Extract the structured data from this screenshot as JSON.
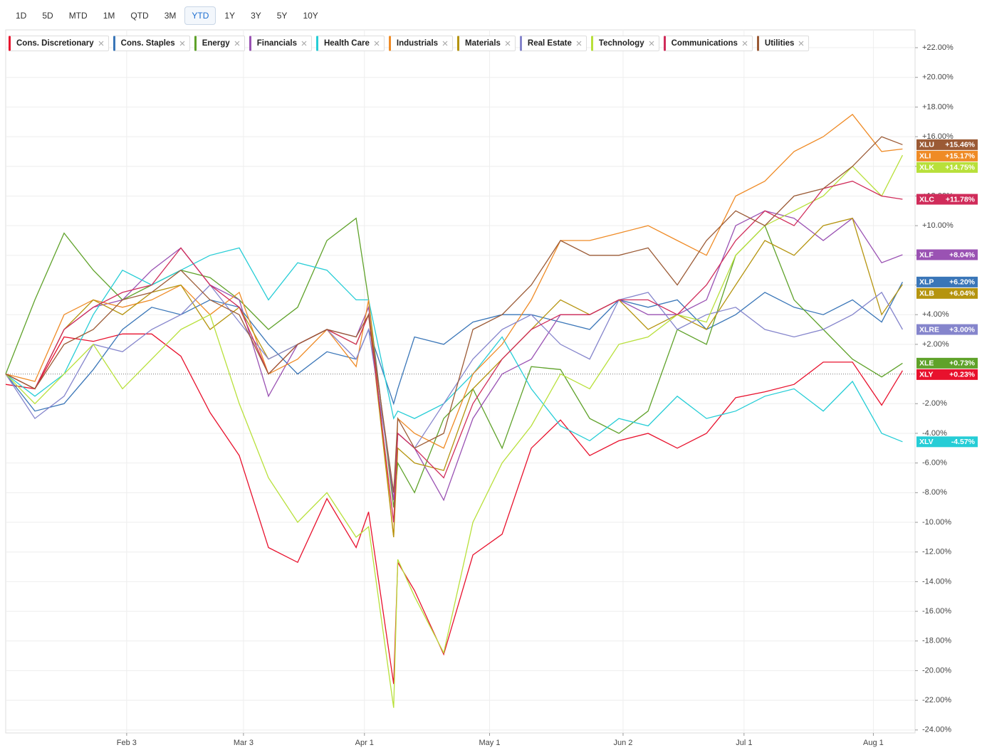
{
  "range_buttons": [
    "1D",
    "5D",
    "MTD",
    "1M",
    "QTD",
    "3M",
    "YTD",
    "1Y",
    "3Y",
    "5Y",
    "10Y"
  ],
  "active_range": "YTD",
  "chart_data": {
    "type": "line",
    "x": [
      "Jan 5",
      "Jan 12",
      "Jan 19",
      "Jan 26",
      "Feb 2",
      "Feb 9",
      "Feb 16",
      "Feb 23",
      "Mar 2",
      "Mar 9",
      "Mar 16",
      "Mar 23",
      "Mar 30",
      "Apr 2",
      "Apr 8",
      "Apr 9",
      "Apr 13",
      "Apr 20",
      "Apr 27",
      "May 4",
      "May 11",
      "May 18",
      "May 25",
      "Jun 1",
      "Jun 8",
      "Jun 15",
      "Jun 22",
      "Jun 29",
      "Jul 6",
      "Jul 13",
      "Jul 20",
      "Jul 27",
      "Aug 3",
      "Aug 8"
    ],
    "xlim": [
      "Jan 5",
      "Aug 11"
    ],
    "xticks": [
      "Feb 3",
      "Mar 3",
      "Apr 1",
      "May 1",
      "Jun 2",
      "Jul 1",
      "Aug 1"
    ],
    "ylim": [
      -24.2,
      23.2
    ],
    "yticks": [
      {
        "value": -24,
        "label": "-24.00%"
      },
      {
        "value": -22,
        "label": "-22.00%"
      },
      {
        "value": -20,
        "label": "-20.00%"
      },
      {
        "value": -18,
        "label": "-18.00%"
      },
      {
        "value": -16,
        "label": "-16.00%"
      },
      {
        "value": -14,
        "label": "-14.00%"
      },
      {
        "value": -12,
        "label": "-12.00%"
      },
      {
        "value": -10,
        "label": "-10.00%"
      },
      {
        "value": -8,
        "label": "-8.00%"
      },
      {
        "value": -6,
        "label": "-6.00%"
      },
      {
        "value": -4,
        "label": "-4.00%"
      },
      {
        "value": -2,
        "label": "-2.00%"
      },
      {
        "value": 2,
        "label": "+2.00%"
      },
      {
        "value": 4,
        "label": "+4.00%"
      },
      {
        "value": 6,
        "label": "+6.00%"
      },
      {
        "value": 8,
        "label": "+8.00%"
      },
      {
        "value": 10,
        "label": "+10.00%"
      },
      {
        "value": 12,
        "label": "+12.00%"
      },
      {
        "value": 14,
        "label": "+14.00%"
      },
      {
        "value": 16,
        "label": "+16.00%"
      },
      {
        "value": 18,
        "label": "+18.00%"
      },
      {
        "value": 20,
        "label": "+20.00%"
      },
      {
        "value": 22,
        "label": "+22.00%"
      }
    ],
    "grid": true,
    "series": [
      {
        "name": "Cons. Discretionary",
        "ticker": "XLY",
        "end_label": "+0.23%",
        "color": "#e8112d",
        "values": [
          -0.7,
          -1,
          2.5,
          2.2,
          2.7,
          2.7,
          1.2,
          -2.6,
          -5.5,
          -11.7,
          -12.7,
          -8.4,
          -11.7,
          -9.3,
          -20.9,
          -12.7,
          -14.6,
          -18.9,
          -12.2,
          -10.8,
          -5,
          -3.1,
          -5.5,
          -4.5,
          -4,
          -5,
          -4,
          -1.6,
          -1.2,
          -0.7,
          0.8,
          0.8,
          -2.1,
          0.23
        ]
      },
      {
        "name": "Cons. Staples",
        "ticker": "XLP",
        "end_label": "+6.20%",
        "color": "#3a76b8",
        "values": [
          0,
          -2.5,
          -2,
          0.3,
          3,
          4.5,
          4,
          5,
          4.5,
          2,
          0,
          1.5,
          1,
          3,
          -2,
          -1,
          2.5,
          2,
          3.5,
          4,
          4,
          3.5,
          3,
          5,
          4.5,
          5,
          3,
          4,
          5.5,
          4.5,
          4,
          5,
          3.5,
          6.2
        ]
      },
      {
        "name": "Energy",
        "ticker": "XLE",
        "end_label": "+0.73%",
        "color": "#5fa22a",
        "values": [
          0,
          5,
          9.5,
          7,
          5,
          6,
          7,
          6.5,
          5,
          3,
          4.5,
          9,
          10.5,
          5,
          -9,
          -6,
          -8,
          -3,
          -1,
          -5,
          0.5,
          0.3,
          -3,
          -4,
          -2.5,
          3,
          2,
          8,
          10,
          5,
          3,
          1,
          -0.2,
          0.73
        ]
      },
      {
        "name": "Financials",
        "ticker": "XLF",
        "end_label": "+8.04%",
        "color": "#9a52b3",
        "values": [
          0,
          -1,
          3,
          4.5,
          5,
          7,
          8.5,
          6,
          5,
          -1.5,
          2,
          3,
          2.5,
          4.5,
          -8.5,
          -4,
          -5,
          -8.5,
          -3,
          0,
          1,
          4,
          4,
          5,
          4,
          4,
          5,
          10,
          11,
          10.5,
          9,
          10.5,
          7.5,
          8.04
        ]
      },
      {
        "name": "Health Care",
        "ticker": "XLV",
        "end_label": "-4.57%",
        "color": "#26cdd6",
        "values": [
          0,
          -1.5,
          0,
          4,
          7,
          6,
          7,
          8,
          8.5,
          5,
          7.5,
          7,
          5,
          5,
          -3,
          -2.5,
          -3,
          -2,
          0,
          2.5,
          -1,
          -3.5,
          -4.5,
          -3,
          -3.5,
          -1.5,
          -3,
          -2.5,
          -1.5,
          -1,
          -2.5,
          -0.5,
          -4,
          -4.57
        ]
      },
      {
        "name": "Industrials",
        "ticker": "XLI",
        "end_label": "+15.17%",
        "color": "#ef8b26",
        "values": [
          0,
          -0.5,
          4,
          5,
          4.5,
          5,
          6,
          4,
          5.5,
          0,
          1,
          3,
          0.5,
          5,
          -11,
          -3,
          -4,
          -5,
          0,
          2,
          5,
          9,
          9,
          9.5,
          10,
          9,
          8,
          12,
          13,
          15,
          16,
          17.5,
          15,
          15.17
        ]
      },
      {
        "name": "Materials",
        "ticker": "XLB",
        "end_label": "+6.04%",
        "color": "#b5940f",
        "values": [
          0,
          -1,
          3,
          5,
          4,
          5.5,
          6,
          3,
          4.5,
          1,
          2,
          3,
          2,
          4,
          -11,
          -5,
          -6,
          -6.5,
          -1,
          1,
          3,
          5,
          4,
          5,
          3,
          4,
          3,
          6,
          9,
          8,
          10,
          10.5,
          4,
          6.04
        ]
      },
      {
        "name": "Real Estate",
        "ticker": "XLRE",
        "end_label": "+3.00%",
        "color": "#8585cc",
        "values": [
          0,
          -3,
          -1.5,
          2,
          1.5,
          3,
          4,
          6,
          3.5,
          1,
          2,
          3,
          1,
          3,
          -8,
          -4,
          -5,
          -2,
          1,
          3,
          4,
          2,
          1,
          5,
          5.5,
          3,
          4,
          4.5,
          3,
          2.5,
          3,
          4,
          5.5,
          3
        ]
      },
      {
        "name": "Technology",
        "ticker": "XLK",
        "end_label": "+14.75%",
        "color": "#b8e03a",
        "values": [
          0,
          -2,
          0,
          2,
          -1,
          1,
          3,
          4,
          -2,
          -7,
          -10,
          -8,
          -11,
          -10.3,
          -22.5,
          -12.5,
          -15,
          -18.8,
          -10,
          -6,
          -3.5,
          0,
          -1,
          2,
          2.5,
          4,
          3.5,
          8,
          10,
          11,
          12,
          14,
          12,
          14.75
        ]
      },
      {
        "name": "Communications",
        "ticker": "XLC",
        "end_label": "+11.78%",
        "color": "#d02c5a",
        "values": [
          0,
          -1,
          3,
          4.5,
          5.5,
          6,
          8.5,
          6,
          4.5,
          0,
          2,
          3,
          2,
          4,
          -10,
          -4,
          -5,
          -7,
          -2,
          1,
          3,
          4,
          4,
          5,
          5,
          4,
          6,
          9,
          11,
          10,
          12.5,
          13,
          12,
          11.78
        ]
      },
      {
        "name": "Utilities",
        "ticker": "XLU",
        "end_label": "+15.46%",
        "color": "#9b5a35",
        "values": [
          0,
          -1,
          2,
          3,
          5,
          5.5,
          7,
          5,
          4,
          0,
          2,
          3,
          2.5,
          4,
          -8,
          -3,
          -5,
          -4,
          3,
          4,
          6,
          9,
          8,
          8,
          8.5,
          6,
          9,
          11,
          10,
          12,
          12.5,
          14,
          16,
          15.46
        ]
      }
    ]
  }
}
